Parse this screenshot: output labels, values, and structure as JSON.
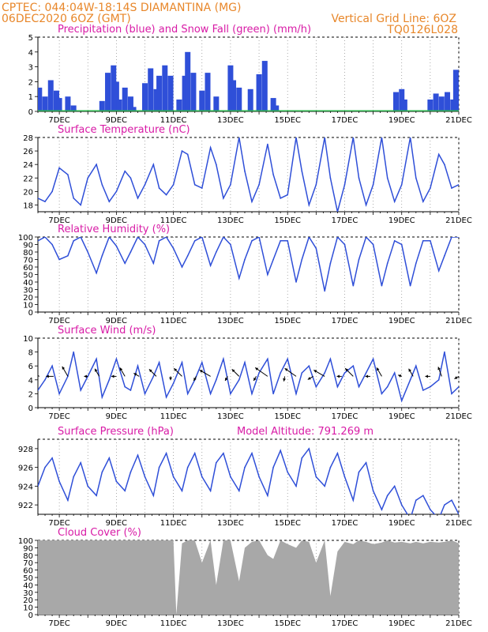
{
  "header": {
    "line1": "CPTEC:   044:04W-18:14S   DIAMANTINA (MG)",
    "line2": "06DEC2020 6OZ (GMT)",
    "grid_note": "Vertical Grid Line: 6OZ",
    "code": "TQ0126L028",
    "model_altitude": "Model Altitude: 791.269 m"
  },
  "colors": {
    "header": "#e8872a",
    "title": "#d81ba6",
    "line": "#2f4fd8",
    "snow": "#2bb24c",
    "arrow": "#000000",
    "cloud": "#a8a8a8"
  },
  "x_axis": {
    "labels": [
      "7DEC",
      "9DEC",
      "11DEC",
      "13DEC",
      "15DEC",
      "17DEC",
      "19DEC",
      "21DEC"
    ],
    "label_days": [
      7,
      9,
      11,
      13,
      15,
      17,
      19,
      21
    ],
    "start_day": 6.25,
    "end_day": 21
  },
  "chart_data": [
    {
      "type": "bar",
      "title": "Precipitation (blue) and Snow Fall (green) (mm/h)",
      "ylim": [
        0,
        5
      ],
      "yticks": [
        0,
        1,
        2,
        3,
        4,
        5
      ],
      "series": [
        {
          "name": "Precipitation",
          "color": "#2f4fd8",
          "x": [
            6.3,
            6.5,
            6.7,
            6.9,
            7.0,
            7.3,
            7.5,
            8.5,
            8.7,
            8.9,
            9.0,
            9.1,
            9.3,
            9.5,
            9.6,
            10.0,
            10.2,
            10.4,
            10.5,
            10.7,
            10.9,
            11.2,
            11.4,
            11.5,
            11.7,
            12.0,
            12.2,
            12.5,
            13.0,
            13.1,
            13.3,
            13.7,
            14.0,
            14.2,
            14.5,
            14.6,
            18.8,
            19.0,
            19.1,
            20.0,
            20.2,
            20.4,
            20.6,
            20.8,
            20.9,
            21.0
          ],
          "values": [
            1.6,
            1.0,
            2.1,
            1.4,
            0.9,
            1.0,
            0.4,
            0.7,
            2.6,
            3.1,
            2.0,
            0.8,
            1.6,
            1.0,
            0.3,
            1.9,
            2.9,
            1.5,
            2.4,
            3.1,
            2.4,
            0.8,
            2.4,
            4.0,
            2.6,
            1.4,
            2.6,
            1.0,
            3.1,
            2.1,
            1.6,
            1.5,
            2.5,
            3.4,
            0.9,
            0.4,
            1.3,
            1.5,
            0.8,
            0.8,
            1.2,
            1.0,
            1.3,
            0.8,
            2.8,
            1.8
          ]
        },
        {
          "name": "Snow Fall",
          "color": "#2bb24c",
          "x": [
            7.0,
            11.0,
            15.0,
            19.0
          ],
          "values": [
            0.08,
            0.08,
            0.08,
            0.08
          ]
        }
      ]
    },
    {
      "type": "line",
      "title": "Surface Temperature (nC)",
      "ylim": [
        17,
        28
      ],
      "yticks": [
        18,
        20,
        22,
        24,
        26,
        28
      ],
      "x": [
        6.25,
        6.5,
        6.75,
        7.0,
        7.3,
        7.5,
        7.75,
        8.0,
        8.3,
        8.5,
        8.75,
        9.0,
        9.3,
        9.5,
        9.75,
        10.0,
        10.3,
        10.5,
        10.75,
        11.0,
        11.3,
        11.5,
        11.75,
        12.0,
        12.3,
        12.5,
        12.75,
        13.0,
        13.3,
        13.5,
        13.75,
        14.0,
        14.3,
        14.5,
        14.75,
        15.0,
        15.3,
        15.5,
        15.75,
        16.0,
        16.3,
        16.5,
        16.75,
        17.0,
        17.3,
        17.5,
        17.75,
        18.0,
        18.3,
        18.5,
        18.75,
        19.0,
        19.3,
        19.5,
        19.75,
        20.0,
        20.3,
        20.5,
        20.75,
        21.0
      ],
      "values": [
        19,
        18.5,
        20,
        23.5,
        22.5,
        19,
        18,
        22,
        24,
        21,
        18.5,
        20,
        23,
        22,
        19,
        21,
        24,
        20.5,
        19.5,
        21,
        26,
        25.5,
        21,
        20.5,
        26.5,
        24,
        19,
        21,
        28,
        23,
        18.5,
        21,
        27,
        22.5,
        19,
        19.5,
        28,
        23,
        18,
        21,
        28,
        22,
        17,
        21,
        28,
        22,
        18,
        21,
        28,
        22,
        18.5,
        21,
        28,
        22,
        18.5,
        20.5,
        25.5,
        24,
        20.5,
        21
      ]
    },
    {
      "type": "line",
      "title": "Relative Humidity (%)",
      "ylim": [
        0,
        100
      ],
      "yticks": [
        0,
        10,
        20,
        30,
        40,
        50,
        60,
        70,
        80,
        90,
        100
      ],
      "x": [
        6.25,
        6.5,
        6.75,
        7.0,
        7.3,
        7.5,
        7.75,
        8.0,
        8.3,
        8.5,
        8.75,
        9.0,
        9.3,
        9.5,
        9.75,
        10.0,
        10.3,
        10.5,
        10.75,
        11.0,
        11.3,
        11.5,
        11.75,
        12.0,
        12.3,
        12.5,
        12.75,
        13.0,
        13.3,
        13.5,
        13.75,
        14.0,
        14.3,
        14.5,
        14.75,
        15.0,
        15.3,
        15.5,
        15.75,
        16.0,
        16.3,
        16.5,
        16.75,
        17.0,
        17.3,
        17.5,
        17.75,
        18.0,
        18.3,
        18.5,
        18.75,
        19.0,
        19.3,
        19.5,
        19.75,
        20.0,
        20.3,
        20.5,
        20.75,
        21.0
      ],
      "values": [
        95,
        100,
        90,
        70,
        75,
        95,
        100,
        80,
        52,
        75,
        100,
        88,
        65,
        80,
        100,
        90,
        65,
        95,
        100,
        85,
        60,
        75,
        95,
        100,
        62,
        80,
        100,
        90,
        45,
        70,
        95,
        100,
        50,
        70,
        95,
        95,
        40,
        70,
        100,
        85,
        28,
        65,
        100,
        90,
        35,
        70,
        100,
        90,
        35,
        65,
        95,
        90,
        35,
        65,
        95,
        95,
        55,
        75,
        100,
        100
      ]
    },
    {
      "type": "line",
      "title": "Surface Wind (m/s)",
      "ylim": [
        0,
        10
      ],
      "yticks": [
        0,
        2,
        4,
        6,
        8,
        10
      ],
      "x": [
        6.25,
        6.5,
        6.75,
        7.0,
        7.3,
        7.5,
        7.75,
        8.0,
        8.3,
        8.5,
        8.75,
        9.0,
        9.3,
        9.5,
        9.75,
        10.0,
        10.3,
        10.5,
        10.75,
        11.0,
        11.3,
        11.5,
        11.75,
        12.0,
        12.3,
        12.5,
        12.75,
        13.0,
        13.3,
        13.5,
        13.75,
        14.0,
        14.3,
        14.5,
        14.75,
        15.0,
        15.3,
        15.5,
        15.75,
        16.0,
        16.3,
        16.5,
        16.75,
        17.0,
        17.3,
        17.5,
        17.75,
        18.0,
        18.3,
        18.5,
        18.75,
        19.0,
        19.3,
        19.5,
        19.75,
        20.0,
        20.3,
        20.5,
        20.75,
        21.0
      ],
      "values": [
        2.5,
        4,
        6,
        2,
        4.5,
        8,
        2.5,
        4.5,
        7,
        1.5,
        4,
        7,
        3,
        2.5,
        6,
        2,
        4.5,
        6.5,
        1.5,
        3.5,
        6.5,
        2,
        4,
        6.5,
        2,
        4,
        7,
        2,
        4,
        6.5,
        2,
        5,
        7,
        2,
        5,
        7,
        2,
        5,
        6,
        3,
        5,
        7,
        3,
        5,
        6,
        3,
        5,
        7,
        2,
        3,
        5,
        1,
        4,
        6,
        2.5,
        3,
        4,
        8,
        2,
        3
      ],
      "arrows_note": "wind direction vectors",
      "arrows": [
        {
          "day": 6.3,
          "angle": 210,
          "len": 1.0
        },
        {
          "day": 6.8,
          "angle": 180,
          "len": 0.6
        },
        {
          "day": 7.3,
          "angle": 240,
          "len": 0.9
        },
        {
          "day": 8.0,
          "angle": 180,
          "len": 0.3
        },
        {
          "day": 8.4,
          "angle": 240,
          "len": 0.7
        },
        {
          "day": 9.0,
          "angle": 180,
          "len": 0.4
        },
        {
          "day": 9.3,
          "angle": 240,
          "len": 0.8
        },
        {
          "day": 9.8,
          "angle": 210,
          "len": 0.5
        },
        {
          "day": 10.4,
          "angle": 225,
          "len": 0.8
        },
        {
          "day": 10.9,
          "angle": 90,
          "len": 0.3
        },
        {
          "day": 11.3,
          "angle": 225,
          "len": 0.9
        },
        {
          "day": 11.8,
          "angle": 120,
          "len": 0.4
        },
        {
          "day": 12.3,
          "angle": 210,
          "len": 1.0
        },
        {
          "day": 12.9,
          "angle": 120,
          "len": 0.4
        },
        {
          "day": 13.3,
          "angle": 225,
          "len": 0.8
        },
        {
          "day": 13.9,
          "angle": 120,
          "len": 0.4
        },
        {
          "day": 14.3,
          "angle": 215,
          "len": 1.2
        },
        {
          "day": 14.9,
          "angle": 100,
          "len": 0.4
        },
        {
          "day": 15.3,
          "angle": 215,
          "len": 1.1
        },
        {
          "day": 15.9,
          "angle": 150,
          "len": 0.5
        },
        {
          "day": 16.3,
          "angle": 210,
          "len": 1.0
        },
        {
          "day": 16.9,
          "angle": 180,
          "len": 0.4
        },
        {
          "day": 17.3,
          "angle": 225,
          "len": 0.9
        },
        {
          "day": 17.9,
          "angle": 180,
          "len": 0.4
        },
        {
          "day": 18.3,
          "angle": 240,
          "len": 0.8
        },
        {
          "day": 19.0,
          "angle": 200,
          "len": 0.3
        },
        {
          "day": 19.4,
          "angle": 240,
          "len": 0.7
        },
        {
          "day": 20.0,
          "angle": 180,
          "len": 0.4
        },
        {
          "day": 20.4,
          "angle": 250,
          "len": 0.8
        },
        {
          "day": 21.0,
          "angle": 150,
          "len": 0.4
        }
      ]
    },
    {
      "type": "line",
      "title": "Surface Pressure (hPa)",
      "ylim": [
        921,
        929
      ],
      "yticks": [
        922,
        924,
        926,
        928
      ],
      "x": [
        6.25,
        6.5,
        6.75,
        7.0,
        7.3,
        7.5,
        7.75,
        8.0,
        8.3,
        8.5,
        8.75,
        9.0,
        9.3,
        9.5,
        9.75,
        10.0,
        10.3,
        10.5,
        10.75,
        11.0,
        11.3,
        11.5,
        11.75,
        12.0,
        12.3,
        12.5,
        12.75,
        13.0,
        13.3,
        13.5,
        13.75,
        14.0,
        14.3,
        14.5,
        14.75,
        15.0,
        15.3,
        15.5,
        15.75,
        16.0,
        16.3,
        16.5,
        16.75,
        17.0,
        17.3,
        17.5,
        17.75,
        18.0,
        18.3,
        18.5,
        18.75,
        19.0,
        19.3,
        19.5,
        19.75,
        20.0,
        20.3,
        20.5,
        20.75,
        21.0
      ],
      "values": [
        924,
        926,
        927,
        924.5,
        922.5,
        925,
        926.5,
        924,
        923,
        925.5,
        927,
        924.5,
        923.5,
        925.5,
        927.3,
        925,
        923,
        926,
        927.5,
        925,
        923.5,
        926,
        927.5,
        925,
        923.5,
        926.5,
        927.5,
        925,
        923.5,
        926,
        927.5,
        925,
        923,
        926,
        927.8,
        925.5,
        924,
        927,
        928,
        925,
        924,
        926,
        927.5,
        925,
        922.5,
        925.5,
        926.5,
        923.5,
        921.5,
        923,
        924,
        922,
        920.5,
        922.5,
        923,
        921.5,
        920.5,
        922,
        922.5,
        921
      ]
    },
    {
      "type": "area",
      "title": "Cloud Cover (%)",
      "ylim": [
        0,
        100
      ],
      "yticks": [
        0,
        10,
        20,
        30,
        40,
        50,
        60,
        70,
        80,
        90,
        100
      ],
      "x": [
        6.25,
        6.5,
        6.75,
        7.0,
        7.3,
        7.5,
        7.75,
        8.0,
        8.3,
        8.5,
        8.75,
        9.0,
        9.3,
        9.5,
        9.75,
        10.0,
        10.3,
        10.5,
        10.75,
        11.0,
        11.1,
        11.3,
        11.5,
        11.75,
        12.0,
        12.3,
        12.5,
        12.75,
        13.0,
        13.3,
        13.5,
        13.75,
        14.0,
        14.3,
        14.5,
        14.75,
        15.0,
        15.3,
        15.5,
        15.75,
        16.0,
        16.3,
        16.5,
        16.75,
        17.0,
        17.3,
        17.5,
        17.75,
        18.0,
        18.3,
        18.5,
        18.75,
        19.0,
        19.3,
        19.5,
        19.75,
        20.0,
        20.3,
        20.5,
        20.75,
        21.0
      ],
      "values": [
        100,
        100,
        100,
        100,
        100,
        100,
        100,
        100,
        100,
        100,
        100,
        100,
        100,
        100,
        100,
        100,
        100,
        100,
        100,
        100,
        0,
        96,
        100,
        100,
        70,
        100,
        40,
        100,
        100,
        45,
        90,
        98,
        100,
        80,
        75,
        100,
        95,
        90,
        100,
        98,
        70,
        100,
        25,
        85,
        98,
        95,
        100,
        98,
        95,
        97,
        100,
        97,
        98,
        96,
        98,
        96,
        98,
        97,
        98,
        100,
        96
      ]
    }
  ]
}
